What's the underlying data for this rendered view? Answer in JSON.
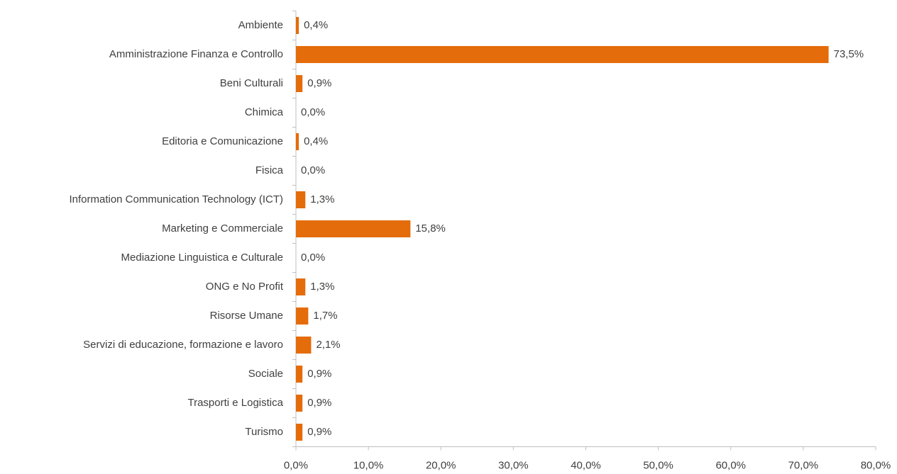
{
  "chart_data": {
    "type": "bar",
    "orientation": "horizontal",
    "categories": [
      "Ambiente",
      "Amministrazione Finanza e Controllo",
      "Beni Culturali",
      "Chimica",
      "Editoria e Comunicazione",
      "Fisica",
      "Information Communication Technology (ICT)",
      "Marketing e Commerciale",
      "Mediazione Linguistica e Culturale",
      "ONG e No Profit",
      "Risorse Umane",
      "Servizi di educazione, formazione e lavoro",
      "Sociale",
      "Trasporti e Logistica",
      "Turismo"
    ],
    "values": [
      0.4,
      73.5,
      0.9,
      0.0,
      0.4,
      0.0,
      1.3,
      15.8,
      0.0,
      1.3,
      1.7,
      2.1,
      0.9,
      0.9,
      0.9
    ],
    "value_labels": [
      "0,4%",
      "73,5%",
      "0,9%",
      "0,0%",
      "0,4%",
      "0,0%",
      "1,3%",
      "15,8%",
      "0,0%",
      "1,3%",
      "1,7%",
      "2,1%",
      "0,9%",
      "0,9%",
      "0,9%"
    ],
    "color": "#e46c0a",
    "xlim": [
      0,
      80
    ],
    "xticks": [
      {
        "value": 0,
        "label": "0,0%"
      },
      {
        "value": 10,
        "label": "10,0%"
      },
      {
        "value": 20,
        "label": "20,0%"
      },
      {
        "value": 30,
        "label": "30,0%"
      },
      {
        "value": 40,
        "label": "40,0%"
      },
      {
        "value": 50,
        "label": "50,0%"
      },
      {
        "value": 60,
        "label": "60,0%"
      },
      {
        "value": 70,
        "label": "70,0%"
      },
      {
        "value": 80,
        "label": "80,0%"
      }
    ],
    "grid": false
  }
}
